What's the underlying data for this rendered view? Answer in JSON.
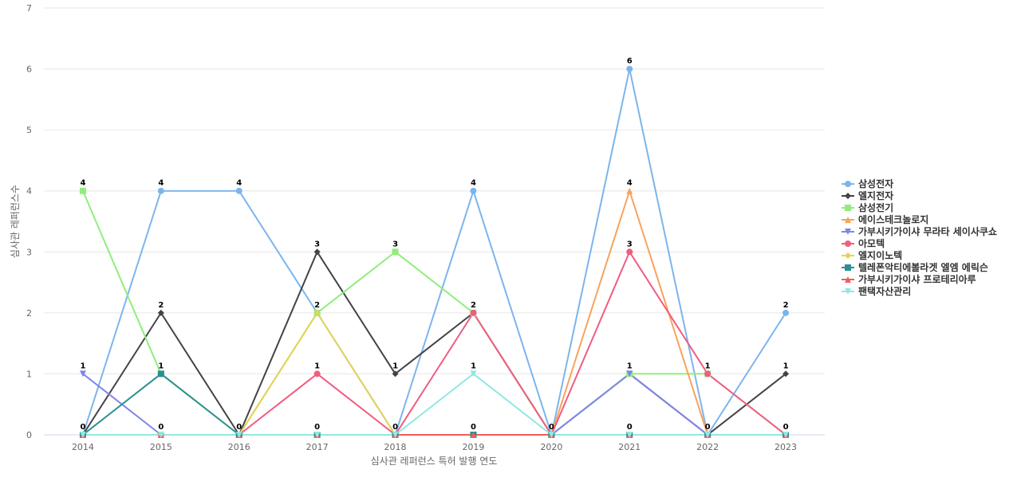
{
  "chart_data": {
    "type": "line",
    "xlabel": "심사관 레퍼런스 특허 발행 연도",
    "ylabel": "심사관 레퍼런스수",
    "ylim": [
      0,
      7
    ],
    "yticks": [
      "0",
      "1",
      "2",
      "3",
      "4",
      "5",
      "6",
      "7"
    ],
    "categories": [
      "2014",
      "2015",
      "2016",
      "2017",
      "2018",
      "2019",
      "2020",
      "2021",
      "2022",
      "2023"
    ],
    "grid": true,
    "legend_position": "right",
    "series": [
      {
        "name": "삼성전자",
        "color": "#7cb5ec",
        "marker": "circle",
        "values": [
          0,
          4,
          4,
          2,
          0,
          4,
          0,
          6,
          0,
          2
        ]
      },
      {
        "name": "엘지전자",
        "color": "#434348",
        "marker": "diamond",
        "values": [
          0,
          2,
          0,
          3,
          1,
          2,
          0,
          1,
          0,
          1
        ]
      },
      {
        "name": "삼성전기",
        "color": "#90ed7d",
        "marker": "square",
        "values": [
          4,
          1,
          0,
          2,
          3,
          2,
          0,
          1,
          1,
          0
        ]
      },
      {
        "name": "에이스테크놀로지",
        "color": "#f7a35c",
        "marker": "triangle",
        "values": [
          0,
          0,
          0,
          0,
          0,
          0,
          0,
          4,
          0,
          0
        ]
      },
      {
        "name": "가부시키가이샤 무라타 세이사쿠쇼",
        "color": "#8085e9",
        "marker": "triangle-down",
        "values": [
          1,
          0,
          0,
          0,
          0,
          0,
          0,
          1,
          0,
          0
        ]
      },
      {
        "name": "아모텍",
        "color": "#f15c80",
        "marker": "circle",
        "values": [
          0,
          0,
          0,
          1,
          0,
          2,
          0,
          3,
          1,
          0
        ]
      },
      {
        "name": "엘지이노텍",
        "color": "#e4d354",
        "marker": "diamond",
        "values": [
          0,
          0,
          0,
          2,
          0,
          0,
          0,
          0,
          0,
          0
        ]
      },
      {
        "name": "텔레폰악티에볼라겟 엘엠 에릭슨",
        "color": "#2b908f",
        "marker": "square",
        "values": [
          0,
          1,
          0,
          0,
          0,
          0,
          0,
          0,
          0,
          0
        ]
      },
      {
        "name": "가부시키가이샤 프로테리아루",
        "color": "#f45b5b",
        "marker": "triangle",
        "values": [
          0,
          0,
          0,
          0,
          0,
          0,
          0,
          0,
          0,
          0
        ]
      },
      {
        "name": "팬택자산관리",
        "color": "#91e8e1",
        "marker": "triangle-down",
        "values": [
          0,
          0,
          0,
          0,
          0,
          1,
          0,
          0,
          0,
          0
        ]
      }
    ],
    "data_labels": [
      {
        "category": "2014",
        "value": 4,
        "text": "4"
      },
      {
        "category": "2014",
        "value": 1,
        "text": "1"
      },
      {
        "category": "2014",
        "value": 0,
        "text": "0"
      },
      {
        "category": "2015",
        "value": 4,
        "text": "4"
      },
      {
        "category": "2015",
        "value": 2,
        "text": "2"
      },
      {
        "category": "2015",
        "value": 1,
        "text": "1"
      },
      {
        "category": "2015",
        "value": 0,
        "text": "0"
      },
      {
        "category": "2016",
        "value": 4,
        "text": "4"
      },
      {
        "category": "2016",
        "value": 0,
        "text": "0"
      },
      {
        "category": "2017",
        "value": 3,
        "text": "3"
      },
      {
        "category": "2017",
        "value": 2,
        "text": "2"
      },
      {
        "category": "2017",
        "value": 1,
        "text": "1"
      },
      {
        "category": "2017",
        "value": 0,
        "text": "0"
      },
      {
        "category": "2018",
        "value": 3,
        "text": "3"
      },
      {
        "category": "2018",
        "value": 1,
        "text": "1"
      },
      {
        "category": "2018",
        "value": 0,
        "text": "0"
      },
      {
        "category": "2019",
        "value": 4,
        "text": "4"
      },
      {
        "category": "2019",
        "value": 2,
        "text": "2"
      },
      {
        "category": "2019",
        "value": 1,
        "text": "1"
      },
      {
        "category": "2019",
        "value": 0,
        "text": "0"
      },
      {
        "category": "2020",
        "value": 0,
        "text": "0"
      },
      {
        "category": "2021",
        "value": 6,
        "text": "6"
      },
      {
        "category": "2021",
        "value": 4,
        "text": "4"
      },
      {
        "category": "2021",
        "value": 3,
        "text": "3"
      },
      {
        "category": "2021",
        "value": 1,
        "text": "1"
      },
      {
        "category": "2021",
        "value": 0,
        "text": "0"
      },
      {
        "category": "2022",
        "value": 1,
        "text": "1"
      },
      {
        "category": "2022",
        "value": 0,
        "text": "0"
      },
      {
        "category": "2023",
        "value": 2,
        "text": "2"
      },
      {
        "category": "2023",
        "value": 1,
        "text": "1"
      },
      {
        "category": "2023",
        "value": 0,
        "text": "0"
      }
    ]
  }
}
